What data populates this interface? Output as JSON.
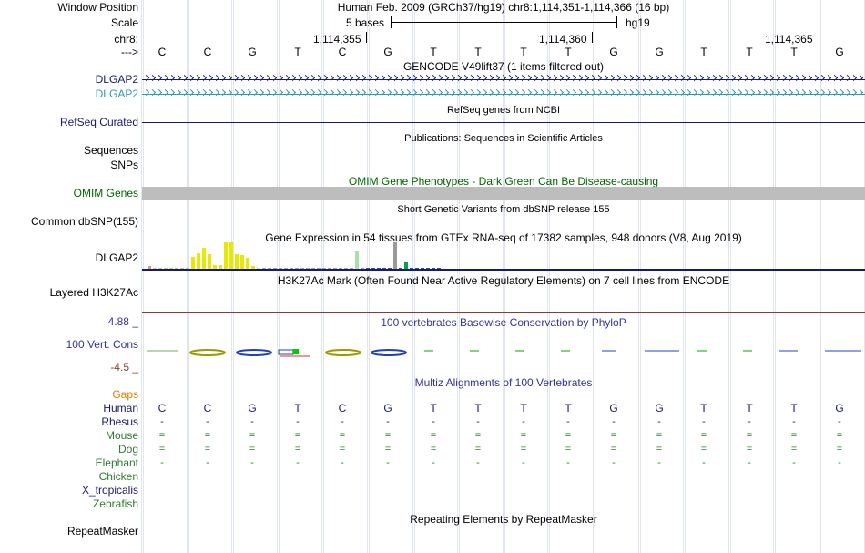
{
  "left_labels": {
    "window_position": "Window Position",
    "scale": "Scale",
    "chrom": "chr8:",
    "strand": "--->",
    "dlgap2_a": "DLGAP2",
    "dlgap2_b": "DLGAP2",
    "refseq": "RefSeq Curated",
    "sequences": "Sequences",
    "snps": "SNPs",
    "omim": "OMIM Genes",
    "common_dbsnp": "Common dbSNP(155)",
    "dlgap2_expr": "DLGAP2",
    "h3k27ac": "Layered H3K27Ac",
    "cons_max": "4.88 _",
    "cons_label": "100 Vert. Cons",
    "cons_min": "-4.5 _",
    "gaps": "Gaps",
    "human": "Human",
    "rhesus": "Rhesus",
    "mouse": "Mouse",
    "dog": "Dog",
    "elephant": "Elephant",
    "chicken": "Chicken",
    "x_tropicalis": "X_tropicalis",
    "zebrafish": "Zebrafish",
    "repeatmasker": "RepeatMasker"
  },
  "colors": {
    "navy": "#191970",
    "teal": "#3399aa",
    "green": "#2e7d32",
    "darkgreen": "#006400",
    "orange": "#e08000",
    "brown": "#8b3a3a",
    "consblue": "#333399"
  },
  "header": {
    "assembly": "Human Feb. 2009 (GRCh37/hg19)   chr8:1,114,351-1,114,366 (16 bp)",
    "scale_text": "5 bases",
    "scale_db": "hg19",
    "coords": [
      "1,114,355",
      "1,114,360",
      "1,114,365"
    ]
  },
  "sequence": [
    "C",
    "C",
    "G",
    "T",
    "C",
    "G",
    "T",
    "T",
    "T",
    "T",
    "G",
    "G",
    "T",
    "T",
    "T",
    "G"
  ],
  "tracks": {
    "gencode_title": "GENCODE V49lift37 (1 items filtered out)",
    "refseq_title": "RefSeq genes from NCBI",
    "pubs_title": "Publications: Sequences in Scientific Articles",
    "omim_title": "OMIM Gene Phenotypes - Dark Green Can Be Disease-causing",
    "dbsnp_title": "Short Genetic Variants from dbSNP release 155",
    "gtex_title": "Gene Expression in 54 tissues from GTEx RNA-seq of 17382 samples, 948 donors (V8, Aug 2019)",
    "h3k27_title": "H3K27Ac Mark (Often Found Near Active Regulatory Elements) on 7 cell lines from ENCODE",
    "phylop_title": "100 vertebrates Basewise Conservation by PhyloP",
    "multiz_title": "Multiz Alignments of 100 Vertebrates",
    "repeat_title": "Repeating Elements by RepeatMasker"
  },
  "alignments": {
    "rhesus": [
      "-",
      "-",
      "-",
      "-",
      "-",
      "-",
      "-",
      "-",
      "-",
      "-",
      "-",
      "-",
      "-",
      "-",
      "-",
      "-"
    ],
    "mouse": [
      "=",
      "=",
      "=",
      "=",
      "=",
      "=",
      "=",
      "=",
      "=",
      "=",
      "=",
      "=",
      "=",
      "=",
      "=",
      "="
    ],
    "dog": [
      "=",
      "=",
      "=",
      "=",
      "=",
      "=",
      "=",
      "=",
      "=",
      "=",
      "=",
      "=",
      "=",
      "=",
      "=",
      "="
    ],
    "elephant": [
      "-",
      "-",
      "-",
      "-",
      "-",
      "-",
      "-",
      "-",
      "-",
      "-",
      "-",
      "-",
      "-",
      "-",
      "-",
      "-"
    ]
  },
  "gtex_bars": [
    {
      "value": 0.1,
      "color": "#d1a35a"
    },
    {
      "value": 0.05,
      "color": "#e0c080"
    },
    {
      "value": 0.05,
      "color": "#c8d040"
    },
    {
      "value": 0.05,
      "color": "#c8d040"
    },
    {
      "value": 0.05,
      "color": "#c8d040"
    },
    {
      "value": 0.05,
      "color": "#c8d040"
    },
    {
      "value": 0.05,
      "color": "#c8d040"
    },
    {
      "value": 0.05,
      "color": "#c8d040"
    },
    {
      "value": 0.45,
      "color": "#e8e800"
    },
    {
      "value": 0.6,
      "color": "#e8e800"
    },
    {
      "value": 0.8,
      "color": "#e8e800"
    },
    {
      "value": 0.55,
      "color": "#e8e800"
    },
    {
      "value": 0.15,
      "color": "#e8e800"
    },
    {
      "value": 0.15,
      "color": "#e8e800"
    },
    {
      "value": 1.0,
      "color": "#e8e800"
    },
    {
      "value": 1.0,
      "color": "#e8e800"
    },
    {
      "value": 0.55,
      "color": "#e8e800"
    },
    {
      "value": 0.5,
      "color": "#e8e800"
    },
    {
      "value": 0.4,
      "color": "#e8e800"
    },
    {
      "value": 0.12,
      "color": "#e8e800"
    },
    {
      "value": 0.05,
      "color": "#e8e800"
    },
    {
      "value": 0.05,
      "color": "#9aa0a0"
    },
    {
      "value": 0.05,
      "color": "#9aa0a0"
    },
    {
      "value": 0.05,
      "color": "#9aa0a0"
    },
    {
      "value": 0.05,
      "color": "#9aa0a0"
    },
    {
      "value": 0.05,
      "color": "#9aa0a0"
    },
    {
      "value": 0.05,
      "color": "#9aa0a0"
    },
    {
      "value": 0.05,
      "color": "#9aa0a0"
    },
    {
      "value": 0.05,
      "color": "#9aa0a0"
    },
    {
      "value": 0.05,
      "color": "#9aa0a0"
    },
    {
      "value": 0.05,
      "color": "#9aa0a0"
    },
    {
      "value": 0.05,
      "color": "#9aa0a0"
    },
    {
      "value": 0.05,
      "color": "#9aa0a0"
    },
    {
      "value": 0.05,
      "color": "#9aa0a0"
    },
    {
      "value": 0.05,
      "color": "#9aa0a0"
    },
    {
      "value": 0.05,
      "color": "#9aa0a0"
    },
    {
      "value": 0.05,
      "color": "#9aa0a0"
    },
    {
      "value": 0.05,
      "color": "#9aa0a0"
    },
    {
      "value": 0.7,
      "color": "#a8e0a8"
    },
    {
      "value": 0.05,
      "color": "#9aa0a0"
    },
    {
      "value": 0.05,
      "color": "#2050c0"
    },
    {
      "value": 0.05,
      "color": "#2050c0"
    },
    {
      "value": 0.05,
      "color": "#2050c0"
    },
    {
      "value": 0.05,
      "color": "#2050c0"
    },
    {
      "value": 0.05,
      "color": "#2050c0"
    },
    {
      "value": 1.0,
      "color": "#999999"
    },
    {
      "value": 0.05,
      "color": "#2050c0"
    },
    {
      "value": 0.25,
      "color": "#00a050"
    },
    {
      "value": 0.05,
      "color": "#2050c0"
    },
    {
      "value": 0.05,
      "color": "#2050c0"
    },
    {
      "value": 0.05,
      "color": "#2050c0"
    },
    {
      "value": 0.05,
      "color": "#2050c0"
    },
    {
      "value": 0.05,
      "color": "#2050c0"
    },
    {
      "value": 0.05,
      "color": "#2050c0"
    }
  ]
}
